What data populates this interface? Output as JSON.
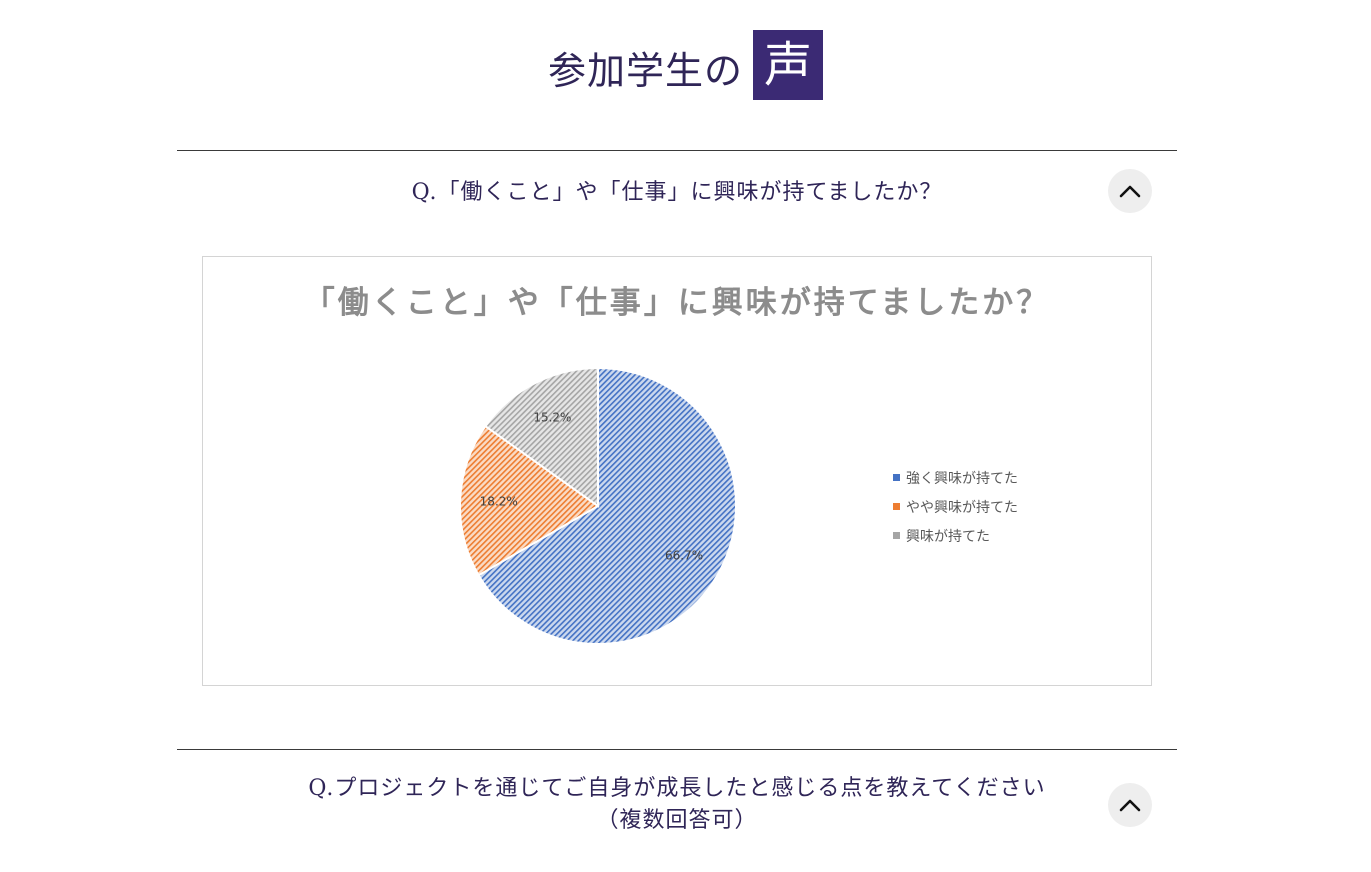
{
  "heading": {
    "main": "参加学生の",
    "box": "声"
  },
  "questions": [
    {
      "text": "Q.「働くこと」や「仕事」に興味が持てましたか？"
    },
    {
      "line1": "Q.プロジェクトを通じてご自身が成長したと感じる点を教えてください",
      "line2": "（複数回答可）"
    }
  ],
  "colors": {
    "accent": "#3b2a74",
    "series": [
      "#4472c4",
      "#ed7d31",
      "#a5a5a5"
    ]
  },
  "chart_data": {
    "type": "pie",
    "title": "「働くこと」や「仕事」に興味が持てましたか？",
    "categories": [
      "強く興味が持てた",
      "やや興味が持てた",
      "興味が持てた"
    ],
    "values": [
      66.7,
      18.2,
      15.2
    ],
    "value_labels": [
      "66.7%",
      "18.2%",
      "15.2%"
    ],
    "legend_position": "right",
    "fill_style": "diagonal-hatch"
  }
}
